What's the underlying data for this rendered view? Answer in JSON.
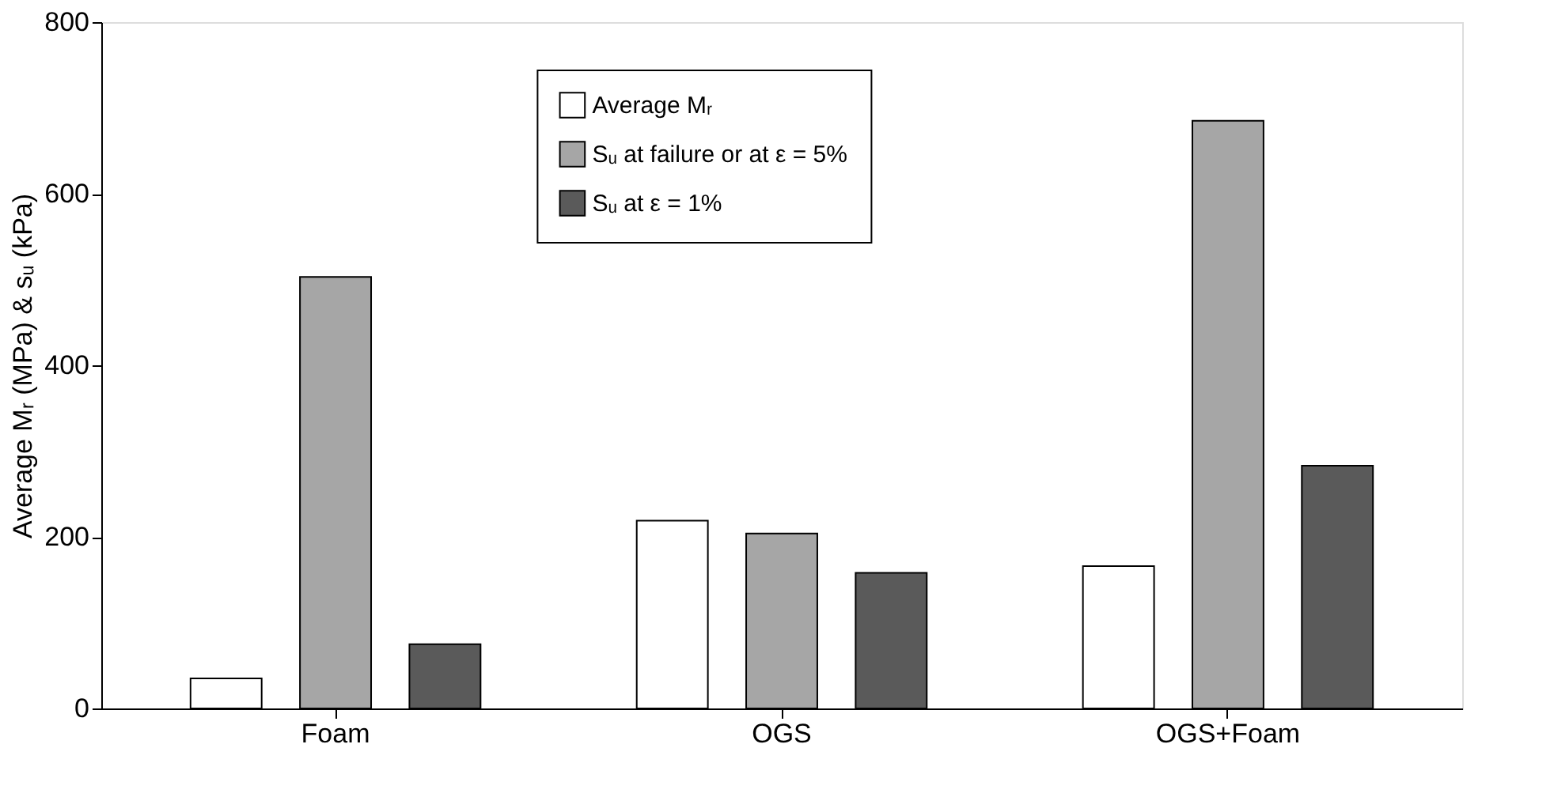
{
  "chart_data": {
    "type": "bar",
    "ylabel": "Average Mᵣ (MPa) & sᵤ (kPa)",
    "categories": [
      "Foam",
      "OGS",
      "OGS+Foam"
    ],
    "series": [
      {
        "name": "Average Mᵣ",
        "color": "#ffffff",
        "values": [
          35,
          219,
          166
        ]
      },
      {
        "name": "Sᵤ at failure or at ε = 5%",
        "color": "#a6a6a6",
        "values": [
          503,
          204,
          685
        ]
      },
      {
        "name": "Sᵤ at ε = 1%",
        "color": "#5a5a5a",
        "values": [
          75,
          158,
          283
        ]
      }
    ],
    "ylim": [
      0,
      800
    ],
    "yticks": [
      0,
      200,
      400,
      600,
      800
    ],
    "grid": false,
    "legend": "top"
  }
}
